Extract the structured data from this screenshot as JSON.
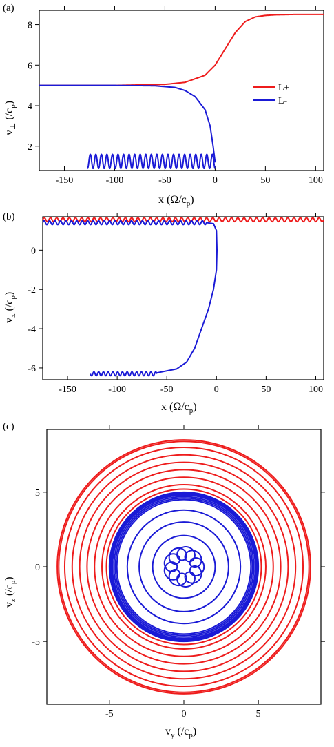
{
  "colors": {
    "red": "#ee1c1c",
    "blue": "#1a1ad6"
  },
  "chart_data": [
    {
      "panel_label": "(a)",
      "type": "line",
      "xlabel": "x (Ω/c_p)",
      "ylabel": "v⊥ (/c_p)",
      "xlim": [
        -175,
        108
      ],
      "ylim": [
        0.8,
        8.7
      ],
      "xticks": [
        "-150",
        "-100",
        "-50",
        "0",
        "50",
        "100"
      ],
      "yticks": [
        "2",
        "4",
        "6",
        "8"
      ],
      "legend": {
        "position": "right",
        "entries": [
          "L+",
          "L-"
        ]
      },
      "series": [
        {
          "name": "L+",
          "color": "red",
          "description": "flat at v⊥≈5.0 for x<-50, smooth rise centered near x≈20, saturates at 8.5 beyond x≈60",
          "x": [
            -175,
            -150,
            -100,
            -50,
            -30,
            -10,
            0,
            10,
            20,
            30,
            40,
            50,
            60,
            80,
            108
          ],
          "y": [
            5.0,
            5.0,
            5.0,
            5.05,
            5.15,
            5.5,
            6.0,
            6.8,
            7.6,
            8.15,
            8.38,
            8.45,
            8.48,
            8.5,
            8.5
          ]
        },
        {
          "name": "L-",
          "color": "blue",
          "description": "flat at 5.0, drops toward ~1.0 near x=0, then oscillates between ~0.9 and 1.6 from x=0 back to x≈-127",
          "x": [
            -175,
            -100,
            -60,
            -40,
            -30,
            -20,
            -10,
            -5,
            -2,
            0
          ],
          "y": [
            5.0,
            5.0,
            4.98,
            4.9,
            4.75,
            4.45,
            3.8,
            3.0,
            2.0,
            1.2
          ],
          "oscillation": {
            "x_start": 0,
            "x_end": -127,
            "y_min": 0.9,
            "y_max": 1.6,
            "cycles": 23
          }
        }
      ]
    },
    {
      "panel_label": "(b)",
      "type": "line",
      "xlabel": "x (Ω/c_p)",
      "ylabel": "v_x (/c_p)",
      "xlim": [
        -175,
        108
      ],
      "ylim": [
        -6.6,
        1.7
      ],
      "xticks": [
        "-150",
        "-100",
        "-50",
        "0",
        "50",
        "100"
      ],
      "yticks": [
        "0",
        "-2",
        "-4",
        "-6"
      ],
      "series": [
        {
          "name": "L+",
          "color": "red",
          "description": "small oscillation about v_x≈1.5 across the whole range",
          "x": [
            -175,
            108
          ],
          "y_center": 1.55,
          "amplitude": 0.1,
          "cycles": 45
        },
        {
          "name": "L-",
          "color": "blue",
          "description": "oscillates about 1.4 from x=-175 to -5, then steep drop to -6.3 near x≈-5 to -30, then oscillates about -6.3 to x≈-127",
          "x": [
            -175,
            -10,
            -3,
            0,
            0.5,
            0,
            -3,
            -8,
            -15,
            -22,
            -30,
            -40,
            -60,
            -127
          ],
          "y": [
            1.4,
            1.4,
            1.35,
            1.0,
            0.0,
            -1.0,
            -2.0,
            -3.0,
            -4.0,
            -5.0,
            -5.7,
            -6.05,
            -6.25,
            -6.3
          ],
          "oscillation_amplitude": 0.1
        }
      ]
    },
    {
      "panel_label": "(c)",
      "type": "line",
      "xlabel": "v_y (/c_p)",
      "ylabel": "v_z (/c_p)",
      "xlim": [
        -9.2,
        9.2
      ],
      "ylim": [
        -9.2,
        9.2
      ],
      "xticks": [
        "-5",
        "0",
        "5"
      ],
      "yticks": [
        "5",
        "0",
        "-5"
      ],
      "series": [
        {
          "name": "L+",
          "color": "red",
          "description": "concentric circles centered at origin",
          "radii": [
            8.5,
            8.4,
            8.0,
            7.5,
            7.0,
            6.5,
            6.0,
            5.5,
            5.2
          ]
        },
        {
          "name": "L-",
          "color": "blue",
          "description": "dense band of circles near r≈5, inner circles, and a small looped epicycle pattern near origin",
          "radii": [
            5.0,
            4.95,
            4.9,
            4.85,
            4.8,
            4.7,
            4.6,
            4.5,
            3.8,
            3.0,
            2.1
          ],
          "epicycle": {
            "R": 0.9,
            "r": 0.45,
            "loops": 9
          }
        }
      ]
    }
  ]
}
